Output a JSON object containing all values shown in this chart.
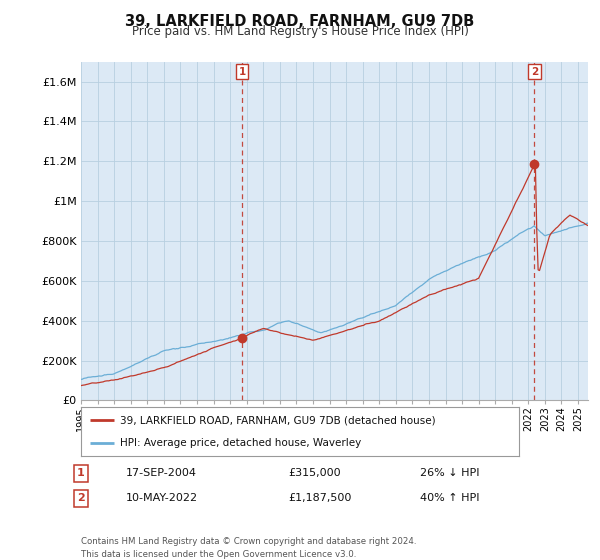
{
  "title": "39, LARKFIELD ROAD, FARNHAM, GU9 7DB",
  "subtitle": "Price paid vs. HM Land Registry's House Price Index (HPI)",
  "ylim": [
    0,
    1700000
  ],
  "yticks": [
    0,
    200000,
    400000,
    600000,
    800000,
    1000000,
    1200000,
    1400000,
    1600000
  ],
  "ytick_labels": [
    "£0",
    "£200K",
    "£400K",
    "£600K",
    "£800K",
    "£1M",
    "£1.2M",
    "£1.4M",
    "£1.6M"
  ],
  "hpi_color": "#6baed6",
  "price_color": "#c0392b",
  "sale1_x": 2004.72,
  "sale1_price": 315000,
  "sale1_date": "17-SEP-2004",
  "sale1_pct": "26% ↓ HPI",
  "sale2_x": 2022.37,
  "sale2_price": 1187500,
  "sale2_date": "10-MAY-2022",
  "sale2_pct": "40% ↑ HPI",
  "legend_label1": "39, LARKFIELD ROAD, FARNHAM, GU9 7DB (detached house)",
  "legend_label2": "HPI: Average price, detached house, Waverley",
  "footer": "Contains HM Land Registry data © Crown copyright and database right 2024.\nThis data is licensed under the Open Government Licence v3.0.",
  "chart_bg": "#dce9f5",
  "fig_bg": "#ffffff",
  "grid_color": "#b8cfe0"
}
